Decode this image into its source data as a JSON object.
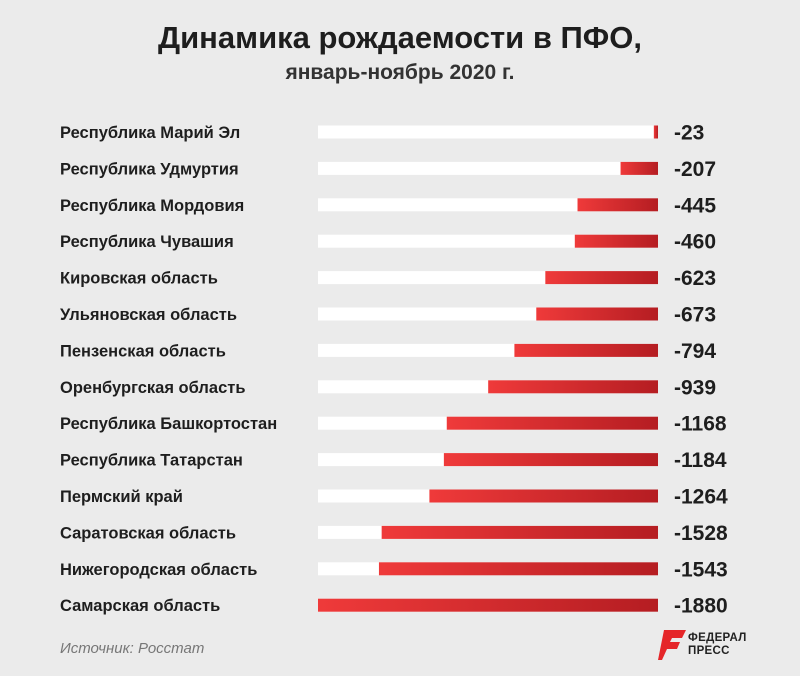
{
  "header": {
    "title": "Динамика рождаемости в ПФО,",
    "subtitle": "январь-ноябрь 2020 г."
  },
  "chart_data": {
    "type": "bar",
    "orientation": "horizontal",
    "categories": [
      "Республика Марий Эл",
      "Республика Удмуртия",
      "Республика Мордовия",
      "Республика Чувашия",
      "Кировская область",
      "Ульяновская область",
      "Пензенская область",
      "Оренбургская область",
      "Республика Башкортостан",
      "Республика Татарстан",
      "Пермский край",
      "Саратовская область",
      "Нижегородская область",
      "Самарская область"
    ],
    "values": [
      -23,
      -207,
      -445,
      -460,
      -623,
      -673,
      -794,
      -939,
      -1168,
      -1184,
      -1264,
      -1528,
      -1543,
      -1880
    ],
    "value_labels": [
      "-23",
      "-207",
      "-445",
      "-460",
      "-623",
      "-673",
      "-794",
      "-939",
      "-1168",
      "-1184",
      "-1264",
      "-1528",
      "-1543",
      "-1880"
    ],
    "xlim": [
      -1880,
      0
    ],
    "grid": false,
    "legend": "none"
  },
  "footer": {
    "source": "Источник: Росстат",
    "logo_line1": "ФЕДЕРАЛ",
    "logo_line2": "ПРЕСС"
  },
  "colors": {
    "bar_start": "#ef3a3a",
    "bar_end": "#b51d22",
    "track": "#ffffff",
    "background": "#ebebeb"
  }
}
